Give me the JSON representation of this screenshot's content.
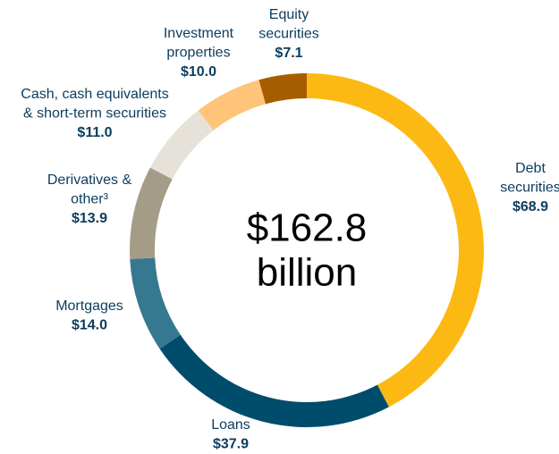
{
  "chart_data": {
    "type": "donut",
    "center_label": [
      "$162.8",
      "billion"
    ],
    "categories": [
      [
        "Debt",
        "securities"
      ],
      [
        "Loans"
      ],
      [
        "Mortgages"
      ],
      [
        "Derivatives &",
        "other³"
      ],
      [
        "Cash, cash equivalents",
        "& short-term securities"
      ],
      [
        "Investment",
        "properties"
      ],
      [
        "Equity",
        "securities"
      ]
    ],
    "values": [
      68.9,
      37.9,
      14.0,
      13.9,
      11.0,
      10.0,
      7.1
    ],
    "value_labels": [
      "$68.9",
      "$37.9",
      "$14.0",
      "$13.9",
      "$11.0",
      "$10.0",
      "$7.1"
    ],
    "colors": [
      "#fdb913",
      "#004c6c",
      "#377891",
      "#a59c88",
      "#e6e2da",
      "#ffc47a",
      "#a65d00"
    ]
  }
}
